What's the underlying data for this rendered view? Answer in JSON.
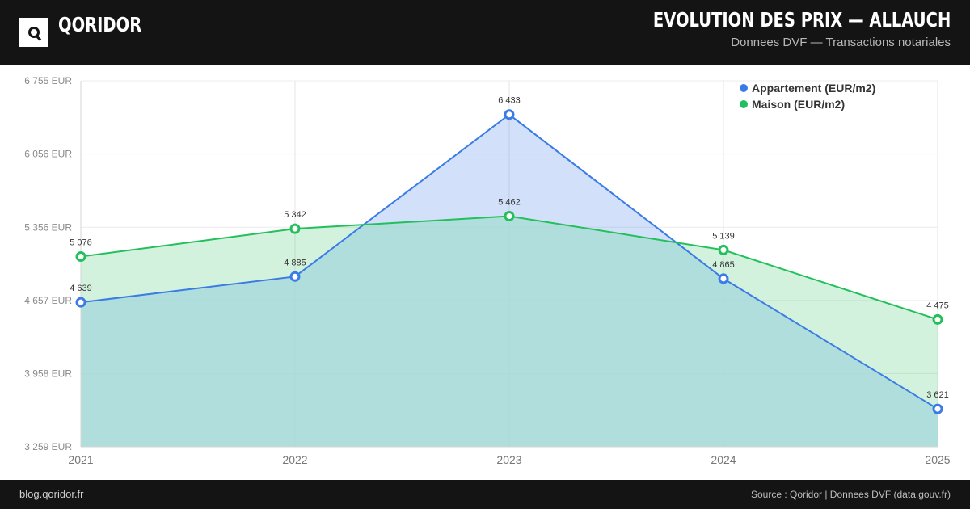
{
  "header": {
    "brand": "QORIDOR",
    "title": "EVOLUTION DES PRIX — ALLAUCH",
    "subtitle": "Donnees DVF — Transactions notariales"
  },
  "footer": {
    "site": "blog.qoridor.fr",
    "source": "Source : Qoridor | Donnees DVF (data.gouv.fr)"
  },
  "chart_data": {
    "type": "area",
    "x": [
      "2021",
      "2022",
      "2023",
      "2024",
      "2025"
    ],
    "ylim": [
      3259,
      6755
    ],
    "yticks": [
      3259,
      3958,
      4657,
      5356,
      6056,
      6755
    ],
    "ytick_labels": [
      "3 259 EUR",
      "3 958 EUR",
      "4 657 EUR",
      "5 356 EUR",
      "6 056 EUR",
      "6 755 EUR"
    ],
    "legend_position": "top-right",
    "series": [
      {
        "name": "Appartement (EUR/m2)",
        "values": [
          4639,
          4885,
          6433,
          4865,
          3621
        ],
        "labels": [
          "4 639",
          "4 885",
          "6 433",
          "4 865",
          "3 621"
        ],
        "color": "#3b7be6",
        "fill": "#cfe0fb"
      },
      {
        "name": "Maison (EUR/m2)",
        "values": [
          5076,
          5342,
          5462,
          5139,
          4475
        ],
        "labels": [
          "5 076",
          "5 342",
          "5 462",
          "5 139",
          "4 475"
        ],
        "color": "#22c05a",
        "fill": "#d3f2dc"
      }
    ],
    "overlap_fill": "#b0dfdc"
  }
}
